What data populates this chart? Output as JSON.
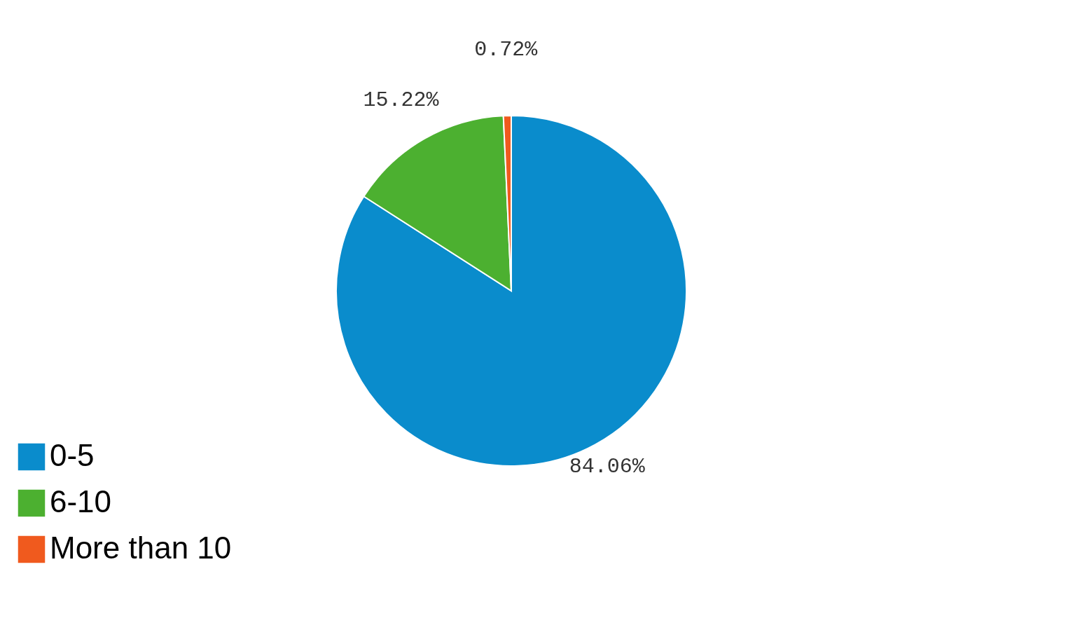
{
  "chart_data": {
    "type": "pie",
    "categories": [
      "0-5",
      "6-10",
      "More than 10"
    ],
    "values": [
      84.06,
      15.22,
      0.72
    ],
    "colors": [
      "#0a8ccc",
      "#4cb030",
      "#f05a1e"
    ],
    "value_labels": [
      "84.06%",
      "15.22%",
      "0.72%"
    ],
    "legend": "bottom left"
  }
}
